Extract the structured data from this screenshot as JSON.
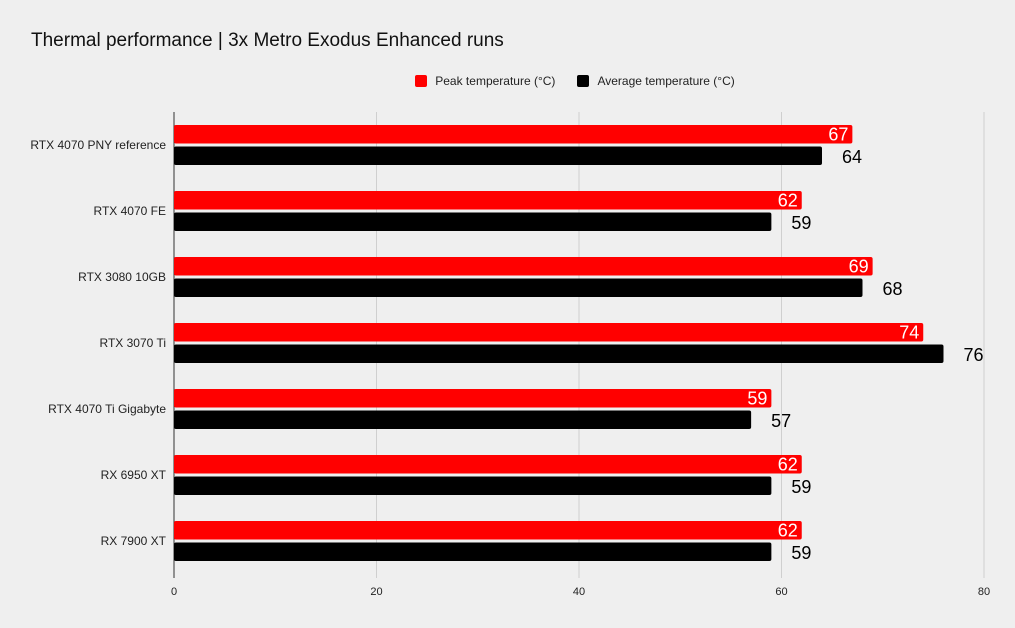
{
  "chart_data": {
    "type": "bar",
    "orientation": "horizontal",
    "title": "Thermal performance | 3x Metro Exodus Enhanced runs",
    "categories": [
      "RTX 4070 PNY reference",
      "RTX 4070 FE",
      "RTX 3080 10GB",
      "RTX 3070 Ti",
      "RTX 4070 Ti Gigabyte",
      "RX 6950 XT",
      "RX 7900 XT"
    ],
    "series": [
      {
        "name": "Peak temperature (°C)",
        "color": "#ff0000",
        "values": [
          67,
          62,
          69,
          74,
          59,
          62,
          62
        ]
      },
      {
        "name": "Average temperature (°C)",
        "color": "#000000",
        "values": [
          64,
          59,
          68,
          76,
          57,
          59,
          59
        ]
      }
    ],
    "xlim": [
      0,
      80
    ],
    "xticks": [
      0,
      20,
      40,
      60,
      80
    ],
    "xlabel": "",
    "ylabel": "",
    "grid": true,
    "legend_position": "top"
  }
}
